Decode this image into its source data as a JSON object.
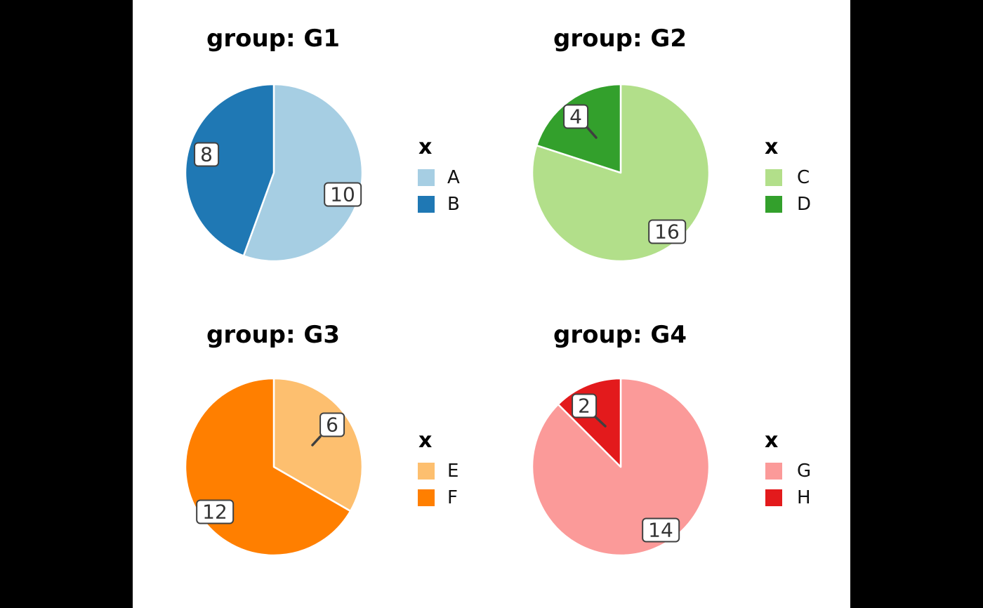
{
  "figure": {
    "letterbox_color": "#000000",
    "plot_background": "#ffffff"
  },
  "chart_data": [
    {
      "type": "pie",
      "facet": "G1",
      "title": "group: G1",
      "legend_title": "x",
      "legend_position": "right",
      "start_angle": "top",
      "direction": "clockwise",
      "slices": [
        {
          "label": "A",
          "value": 10,
          "color": "#a6cee3"
        },
        {
          "label": "B",
          "value": 8,
          "color": "#1f78b4"
        }
      ]
    },
    {
      "type": "pie",
      "facet": "G2",
      "title": "group: G2",
      "legend_title": "x",
      "legend_position": "right",
      "start_angle": "top",
      "direction": "clockwise",
      "slices": [
        {
          "label": "C",
          "value": 16,
          "color": "#b2df8a"
        },
        {
          "label": "D",
          "value": 4,
          "color": "#33a02c"
        }
      ]
    },
    {
      "type": "pie",
      "facet": "G3",
      "title": "group: G3",
      "legend_title": "x",
      "legend_position": "right",
      "start_angle": "top",
      "direction": "clockwise",
      "slices": [
        {
          "label": "E",
          "value": 6,
          "color": "#fdbf6f"
        },
        {
          "label": "F",
          "value": 12,
          "color": "#ff7f00"
        }
      ]
    },
    {
      "type": "pie",
      "facet": "G4",
      "title": "group: G4",
      "legend_title": "x",
      "legend_position": "right",
      "start_angle": "top",
      "direction": "clockwise",
      "slices": [
        {
          "label": "G",
          "value": 14,
          "color": "#fb9a99"
        },
        {
          "label": "H",
          "value": 2,
          "color": "#e31a1c"
        }
      ]
    }
  ]
}
